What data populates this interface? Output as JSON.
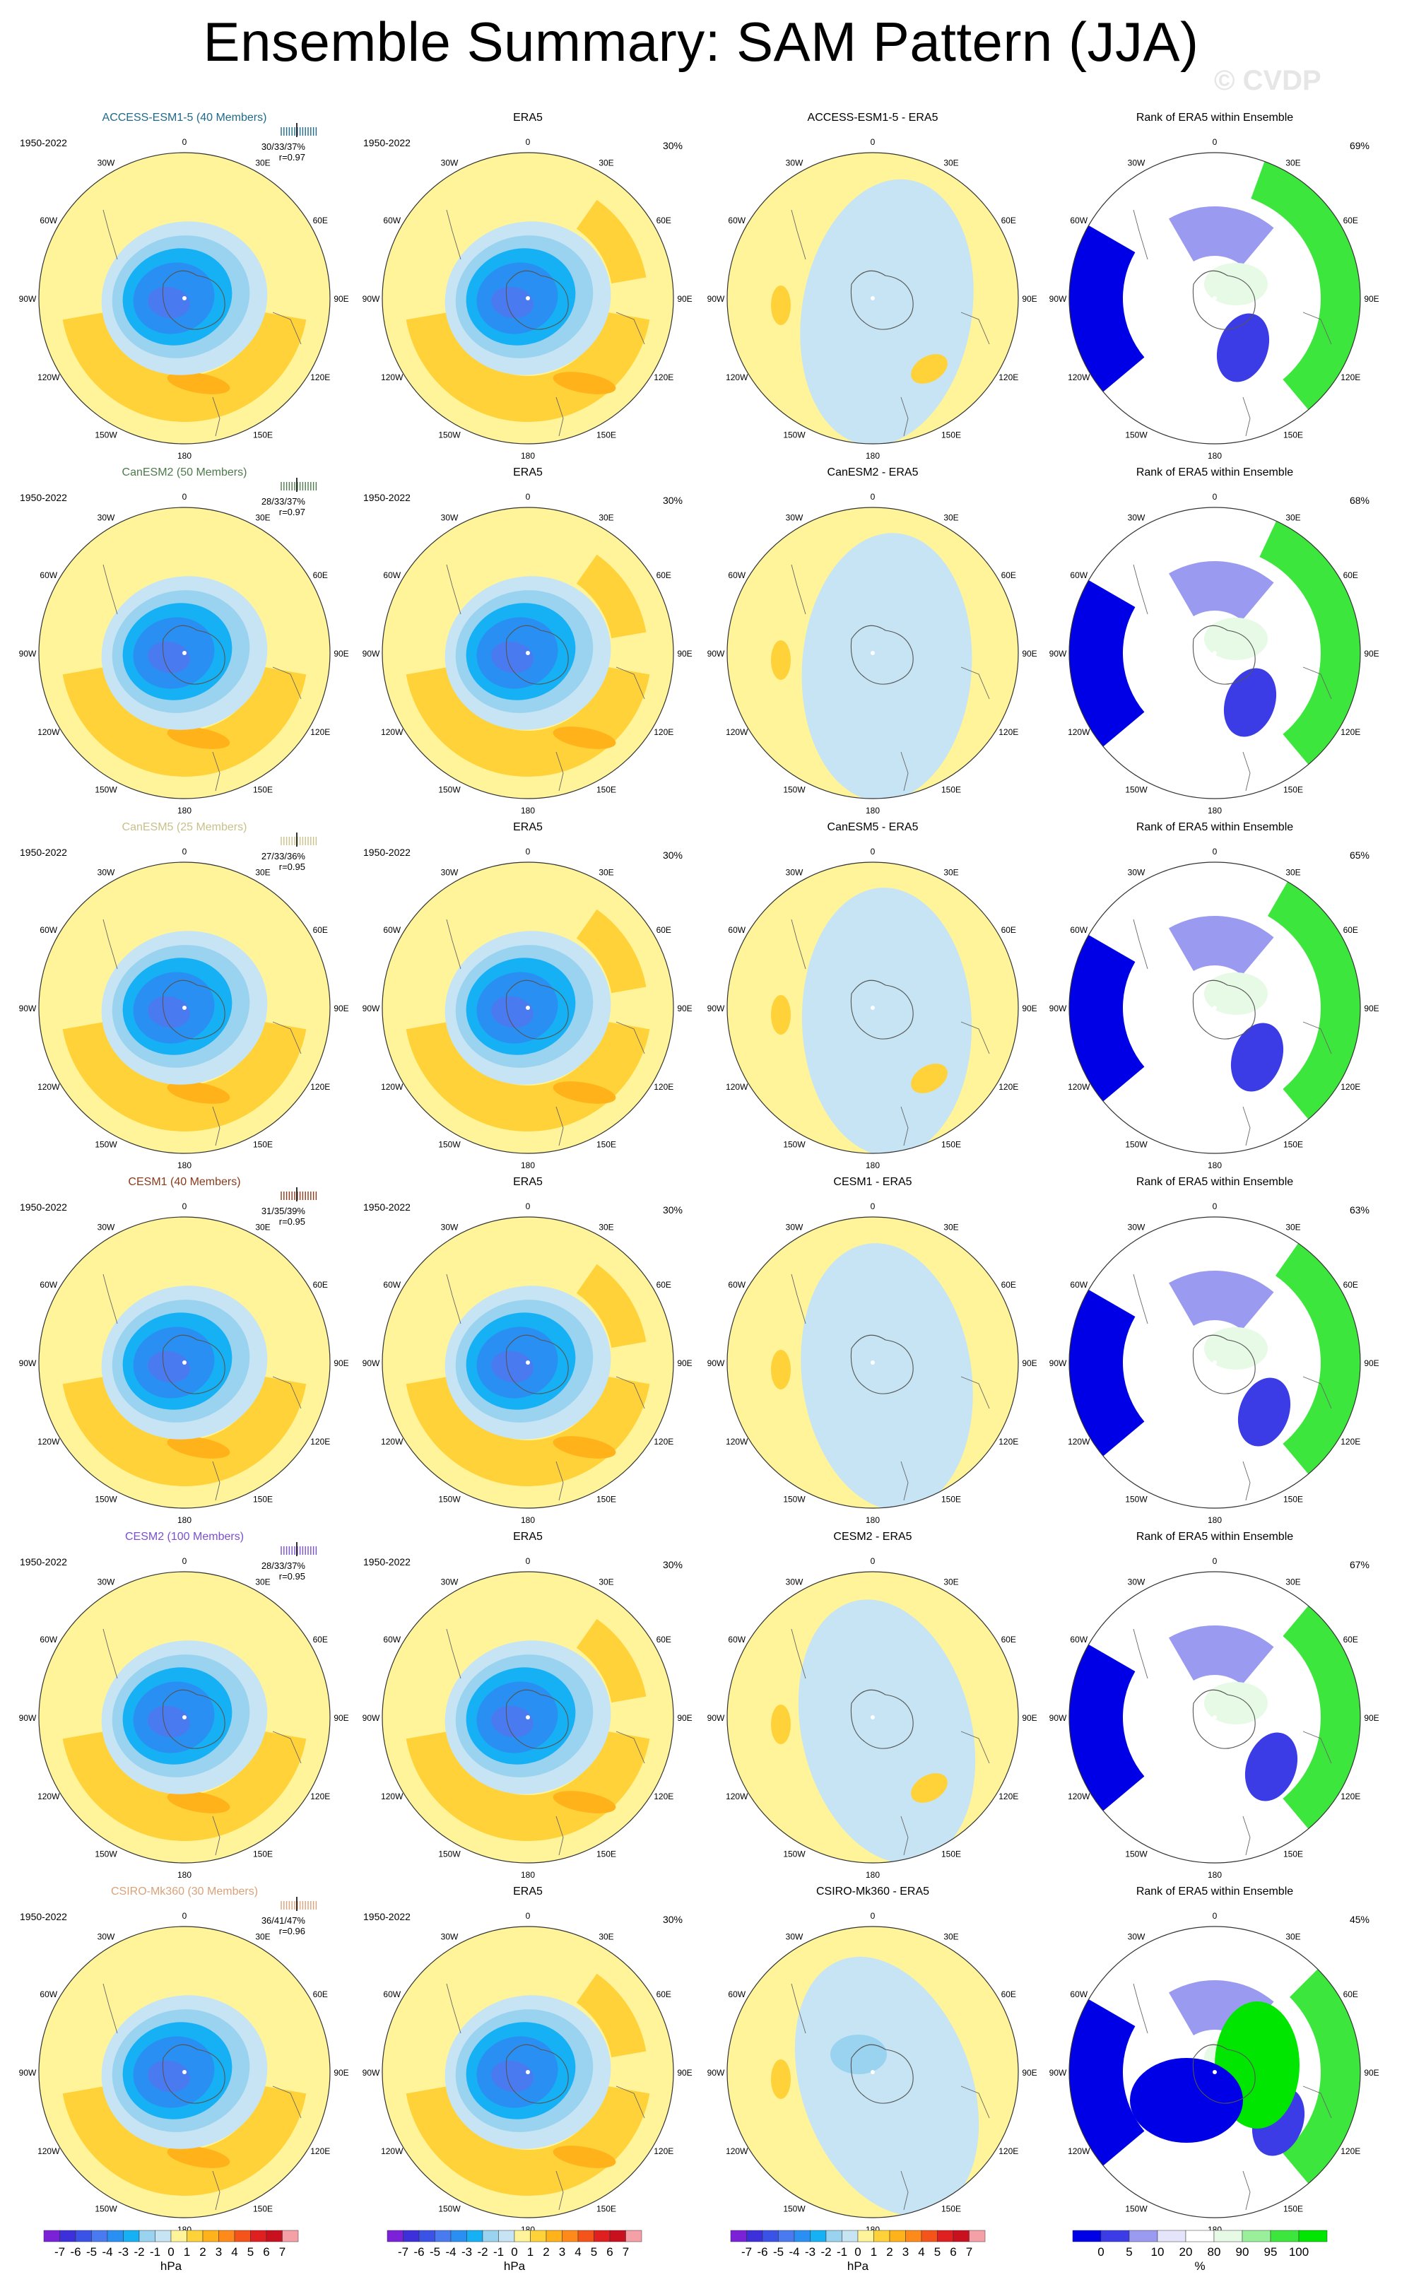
{
  "title": "Ensemble Summary: SAM Pattern (JJA)",
  "watermark": "© CVDP",
  "longitude_labels": [
    "0",
    "30E",
    "60E",
    "90E",
    "120E",
    "150E",
    "180",
    "150W",
    "120W",
    "90W",
    "60W",
    "30W"
  ],
  "rows": [
    {
      "model": "ACCESS-ESM1-5 (40 Members)",
      "color": "#1f6a8a",
      "years": "1950-2022",
      "stats": "30/33/37%",
      "r": "r=0.97",
      "era5_title": "ERA5",
      "era5_years": "1950-2022",
      "era5_pct": "30%",
      "diff_title": "ACCESS-ESM1-5 - ERA5",
      "rank_title": "Rank of ERA5 within Ensemble",
      "rank_pct": "69%"
    },
    {
      "model": "CanESM2 (50 Members)",
      "color": "#4d7a4d",
      "years": "1950-2022",
      "stats": "28/33/37%",
      "r": "r=0.97",
      "era5_title": "ERA5",
      "era5_years": "1950-2022",
      "era5_pct": "30%",
      "diff_title": "CanESM2 - ERA5",
      "rank_title": "Rank of ERA5 within Ensemble",
      "rank_pct": "68%"
    },
    {
      "model": "CanESM5 (25 Members)",
      "color": "#c9c08a",
      "years": "1950-2022",
      "stats": "27/33/36%",
      "r": "r=0.95",
      "era5_title": "ERA5",
      "era5_years": "1950-2022",
      "era5_pct": "30%",
      "diff_title": "CanESM5 - ERA5",
      "rank_title": "Rank of ERA5 within Ensemble",
      "rank_pct": "65%"
    },
    {
      "model": "CESM1 (40 Members)",
      "color": "#8a3a1a",
      "years": "1950-2022",
      "stats": "31/35/39%",
      "r": "r=0.95",
      "era5_title": "ERA5",
      "era5_years": "1950-2022",
      "era5_pct": "30%",
      "diff_title": "CESM1 - ERA5",
      "rank_title": "Rank of ERA5 within Ensemble",
      "rank_pct": "63%"
    },
    {
      "model": "CESM2 (100 Members)",
      "color": "#7a4fd0",
      "years": "1950-2022",
      "stats": "28/33/37%",
      "r": "r=0.95",
      "era5_title": "ERA5",
      "era5_years": "1950-2022",
      "era5_pct": "30%",
      "diff_title": "CESM2 - ERA5",
      "rank_title": "Rank of ERA5 within Ensemble",
      "rank_pct": "67%"
    },
    {
      "model": "CSIRO-Mk360 (30 Members)",
      "color": "#d9a27a",
      "years": "1950-2022",
      "stats": "36/41/47%",
      "r": "r=0.96",
      "era5_title": "ERA5",
      "era5_years": "1950-2022",
      "era5_pct": "30%",
      "diff_title": "CSIRO-Mk360 - ERA5",
      "rank_title": "Rank of ERA5 within Ensemble",
      "rank_pct": "45%"
    }
  ],
  "colorbar_hpa": {
    "labels": [
      "-7",
      "-6",
      "-5",
      "-4",
      "-3",
      "-2",
      "-1",
      "0",
      "1",
      "2",
      "3",
      "4",
      "5",
      "6",
      "7"
    ],
    "unit": "hPa",
    "colors": [
      "#7b22d8",
      "#3d2fd9",
      "#3a52e6",
      "#4a7af0",
      "#2a8ff2",
      "#16b1f5",
      "#9ad3ef",
      "#c6e4f3",
      "#fff499",
      "#ffd23a",
      "#ffb21a",
      "#ff8a1a",
      "#f4541a",
      "#e02020",
      "#c8101e",
      "#f5a0a6"
    ]
  },
  "colorbar_rank": {
    "labels": [
      "0",
      "5",
      "10",
      "20",
      "80",
      "90",
      "95",
      "100"
    ],
    "unit": "%",
    "colors": [
      "#0000e6",
      "#3c3ce6",
      "#9a9af0",
      "#e4e4fa",
      "#ffffff",
      "#e6fae6",
      "#9af09a",
      "#3ce63c",
      "#00e600"
    ]
  }
}
